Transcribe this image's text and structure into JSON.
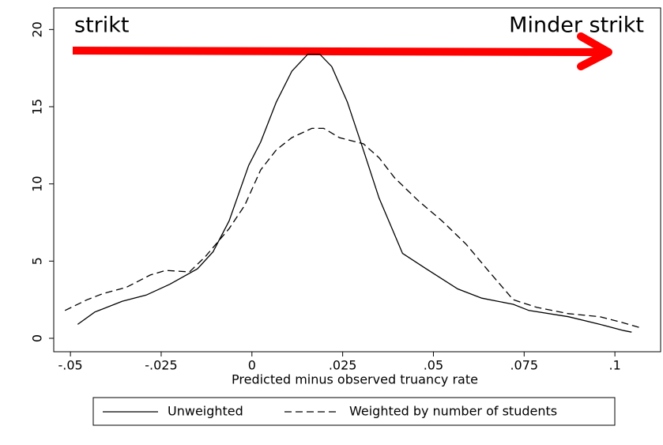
{
  "chart_data": {
    "type": "line",
    "xlabel": "Predicted minus observed truancy rate",
    "annotations": [
      "strikt",
      "Minder strikt"
    ],
    "xlim": [
      -0.0546,
      0.1126
    ],
    "ylim": [
      -0.87,
      21.4
    ],
    "xticks": [
      {
        "value": -0.05,
        "label": "-.05"
      },
      {
        "value": -0.025,
        "label": "-.025"
      },
      0,
      {
        "value": 0.025,
        "label": ".025"
      },
      {
        "value": 0.05,
        "label": ".05"
      },
      {
        "value": 0.075,
        "label": ".075"
      },
      {
        "value": 0.1,
        "label": ".1"
      }
    ],
    "yticks": [
      0,
      5,
      10,
      15,
      20
    ],
    "series": [
      {
        "name": "Unweighted",
        "color": "#000000",
        "dash": "solid",
        "x": [
          -0.048,
          -0.0433,
          -0.0357,
          -0.0291,
          -0.0226,
          -0.015,
          -0.0107,
          -0.0063,
          -0.0009,
          0.0024,
          0.0067,
          0.011,
          0.0154,
          0.0187,
          0.022,
          0.0263,
          0.0307,
          0.035,
          0.0415,
          0.048,
          0.0567,
          0.0633,
          0.072,
          0.0763,
          0.0872,
          0.0959,
          0.1024,
          0.1046
        ],
        "values": [
          0.9,
          1.7,
          2.4,
          2.8,
          3.5,
          4.5,
          5.6,
          7.6,
          11.2,
          12.7,
          15.3,
          17.3,
          18.4,
          18.4,
          17.6,
          15.3,
          12.2,
          9.1,
          5.5,
          4.5,
          3.2,
          2.6,
          2.2,
          1.8,
          1.4,
          0.9,
          0.5,
          0.4
        ]
      },
      {
        "name": "Weighted by number of students",
        "color": "#000000",
        "dash": "dashed",
        "x": [
          -0.0515,
          -0.0454,
          -0.041,
          -0.0346,
          -0.028,
          -0.0237,
          -0.0172,
          -0.0128,
          -0.0063,
          -0.002,
          0.0024,
          0.0067,
          0.011,
          0.0165,
          0.0198,
          0.0241,
          0.0307,
          0.035,
          0.0393,
          0.0459,
          0.0524,
          0.059,
          0.0654,
          0.072,
          0.0785,
          0.0872,
          0.0959,
          0.1024,
          0.1067
        ],
        "values": [
          1.8,
          2.5,
          2.9,
          3.3,
          4.1,
          4.4,
          4.3,
          5.3,
          7.1,
          8.6,
          10.9,
          12.2,
          13.0,
          13.6,
          13.6,
          13.0,
          12.6,
          11.7,
          10.4,
          8.9,
          7.6,
          6.1,
          4.3,
          2.5,
          2.0,
          1.6,
          1.4,
          1.0,
          0.7
        ]
      }
    ]
  }
}
